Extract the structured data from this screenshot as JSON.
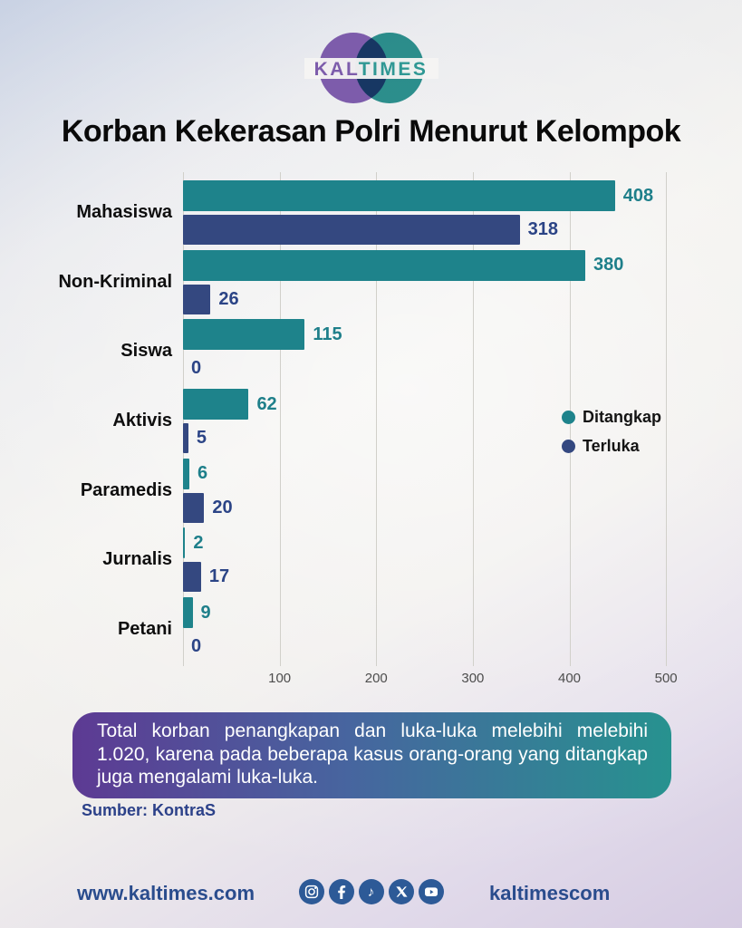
{
  "logo": {
    "kal": "KAL",
    "times": "TIMES"
  },
  "title": "Korban Kekerasan Polri Menurut Kelompok",
  "chart_data": {
    "type": "bar",
    "orientation": "horizontal",
    "title": "Korban Kekerasan Polri Menurut Kelompok",
    "categories": [
      "Mahasiswa",
      "Non-Kriminal",
      "Siswa",
      "Aktivis",
      "Paramedis",
      "Jurnalis",
      "Petani"
    ],
    "series": [
      {
        "name": "Ditangkap",
        "color": "#1e838b",
        "value_color": "#1e7f8a",
        "values": [
          408,
          380,
          115,
          62,
          6,
          2,
          9
        ]
      },
      {
        "name": "Terluka",
        "color": "#344880",
        "value_color": "#2b4486",
        "values": [
          318,
          26,
          0,
          5,
          20,
          17,
          0
        ]
      }
    ],
    "x_ticks": [
      100,
      200,
      300,
      400,
      500
    ],
    "xlim": [
      0,
      528
    ],
    "grid": true,
    "legend_position": "right-middle"
  },
  "note": {
    "text": "Total korban penangkapan dan luka-luka melebihi melebihi 1.020, karena pada beberapa kasus orang-orang yang ditangkap juga mengalami luka-luka."
  },
  "source": {
    "label": "Sumber: KontraS"
  },
  "footer": {
    "website": "www.kaltimes.com",
    "handle": "kaltimescom",
    "social_icons": [
      "instagram-icon",
      "facebook-icon",
      "tiktok-icon",
      "x-icon",
      "youtube-icon"
    ]
  },
  "colors": {
    "bar_ditangkap": "#1e838b",
    "bar_terluka": "#344880",
    "note_gradient_left": "#5d3a93",
    "note_gradient_mid": "#47659f",
    "note_gradient_right": "#27928f",
    "footer_blue": "#2a4c8d",
    "logo_purple": "#7d5cab",
    "logo_teal": "#2f9894"
  }
}
